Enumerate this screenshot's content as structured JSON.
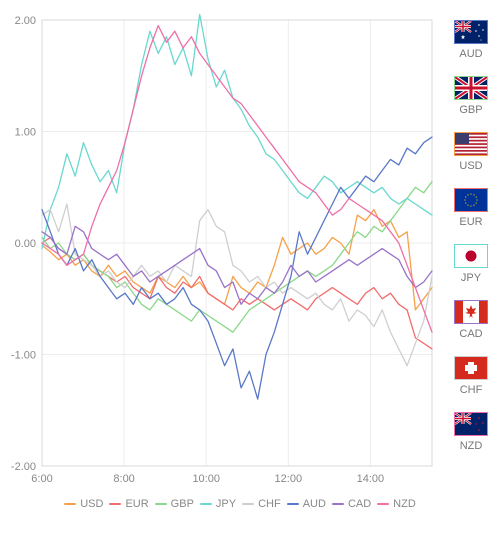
{
  "chart": {
    "type": "line",
    "background_color": "#ffffff",
    "grid_color": "#ececec",
    "axis_color": "#d9d9d9",
    "label_color": "#888888",
    "label_fontsize": 11,
    "xlim": [
      6,
      15.5
    ],
    "ylim": [
      -2,
      2
    ],
    "yticks": [
      -2.0,
      -1.0,
      0.0,
      1.0,
      2.0
    ],
    "ytick_labels": [
      "-2.00",
      "-1.00",
      "0.00",
      "1.00",
      "2.00"
    ],
    "xticks": [
      6,
      8,
      10,
      12,
      14
    ],
    "xtick_labels": [
      "6:00",
      "8:00",
      "10:00",
      "12:00",
      "14:00"
    ],
    "line_width": 1.3,
    "series": [
      {
        "label": "USD",
        "color": "#f5a14a",
        "data": [
          -0.02,
          -0.08,
          -0.15,
          -0.1,
          -0.2,
          -0.15,
          -0.25,
          -0.3,
          -0.2,
          -0.3,
          -0.25,
          -0.35,
          -0.4,
          -0.45,
          -0.3,
          -0.35,
          -0.4,
          -0.3,
          -0.4,
          -0.35,
          -0.45,
          -0.5,
          -0.55,
          -0.3,
          -0.4,
          -0.45,
          -0.35,
          -0.4,
          -0.2,
          0.05,
          -0.1,
          -0.05,
          0.0,
          -0.1,
          -0.05,
          0.05,
          0.0,
          -0.1,
          0.25,
          0.2,
          0.3,
          0.15,
          0.2,
          0.05,
          0.1,
          -0.6,
          -0.5,
          -0.4
        ]
      },
      {
        "label": "EUR",
        "color": "#f26d6d",
        "data": [
          0.0,
          0.05,
          -0.05,
          -0.1,
          -0.15,
          -0.1,
          -0.2,
          -0.25,
          -0.3,
          -0.35,
          -0.3,
          -0.4,
          -0.45,
          -0.5,
          -0.3,
          -0.4,
          -0.45,
          -0.35,
          -0.4,
          -0.3,
          -0.45,
          -0.5,
          -0.55,
          -0.6,
          -0.5,
          -0.55,
          -0.5,
          -0.55,
          -0.6,
          -0.55,
          -0.5,
          -0.55,
          -0.6,
          -0.5,
          -0.45,
          -0.4,
          -0.45,
          -0.5,
          -0.55,
          -0.45,
          -0.4,
          -0.5,
          -0.45,
          -0.55,
          -0.6,
          -0.85,
          -0.9,
          -0.95
        ]
      },
      {
        "label": "GBP",
        "color": "#8ad88a",
        "data": [
          0.05,
          -0.05,
          0.0,
          -0.1,
          -0.15,
          -0.1,
          -0.2,
          -0.25,
          -0.3,
          -0.4,
          -0.35,
          -0.45,
          -0.55,
          -0.6,
          -0.5,
          -0.55,
          -0.6,
          -0.65,
          -0.7,
          -0.6,
          -0.65,
          -0.7,
          -0.75,
          -0.8,
          -0.7,
          -0.6,
          -0.55,
          -0.5,
          -0.45,
          -0.4,
          -0.35,
          -0.3,
          -0.25,
          -0.3,
          -0.25,
          -0.2,
          -0.1,
          0.0,
          0.1,
          0.05,
          0.15,
          0.1,
          0.2,
          0.3,
          0.4,
          0.5,
          0.45,
          0.55
        ]
      },
      {
        "label": "JPY",
        "color": "#69d8cf",
        "data": [
          -0.05,
          0.3,
          0.5,
          0.8,
          0.6,
          0.9,
          0.7,
          0.55,
          0.65,
          0.45,
          0.9,
          1.2,
          1.6,
          1.9,
          1.7,
          1.85,
          1.6,
          1.75,
          1.5,
          2.05,
          1.65,
          1.4,
          1.55,
          1.3,
          1.2,
          1.05,
          0.95,
          0.8,
          0.75,
          0.65,
          0.55,
          0.45,
          0.4,
          0.5,
          0.6,
          0.55,
          0.45,
          0.5,
          0.55,
          0.5,
          0.45,
          0.5,
          0.4,
          0.35,
          0.4,
          0.35,
          0.3,
          0.25
        ]
      },
      {
        "label": "CHF",
        "color": "#cfcfcf",
        "data": [
          0.25,
          0.3,
          0.1,
          0.35,
          -0.1,
          -0.15,
          -0.2,
          -0.3,
          -0.25,
          -0.35,
          -0.4,
          -0.3,
          -0.2,
          -0.3,
          -0.25,
          -0.35,
          -0.2,
          -0.25,
          -0.3,
          0.2,
          0.3,
          0.15,
          0.1,
          -0.2,
          -0.25,
          -0.35,
          -0.3,
          -0.4,
          -0.35,
          -0.45,
          -0.4,
          -0.45,
          -0.5,
          -0.45,
          -0.55,
          -0.6,
          -0.5,
          -0.7,
          -0.6,
          -0.65,
          -0.75,
          -0.6,
          -0.8,
          -0.95,
          -1.1,
          -0.9,
          -0.7,
          -0.3
        ]
      },
      {
        "label": "AUD",
        "color": "#5a78c8",
        "data": [
          0.3,
          0.1,
          -0.1,
          -0.2,
          -0.05,
          -0.25,
          -0.15,
          -0.3,
          -0.4,
          -0.5,
          -0.45,
          -0.55,
          -0.4,
          -0.5,
          -0.45,
          -0.55,
          -0.5,
          -0.4,
          -0.55,
          -0.6,
          -0.7,
          -0.9,
          -1.1,
          -0.95,
          -1.3,
          -1.15,
          -1.4,
          -1.0,
          -0.8,
          -0.55,
          -0.3,
          0.1,
          -0.1,
          0.05,
          0.2,
          0.35,
          0.5,
          0.4,
          0.5,
          0.6,
          0.55,
          0.65,
          0.75,
          0.7,
          0.85,
          0.8,
          0.9,
          0.95
        ]
      },
      {
        "label": "CAD",
        "color": "#9a73c9",
        "data": [
          0.1,
          0.05,
          -0.05,
          -0.1,
          0.15,
          0.1,
          -0.05,
          -0.1,
          -0.15,
          -0.1,
          -0.2,
          -0.3,
          -0.25,
          -0.35,
          -0.3,
          -0.25,
          -0.2,
          -0.15,
          -0.1,
          -0.05,
          -0.2,
          -0.25,
          -0.4,
          -0.35,
          -0.55,
          -0.45,
          -0.5,
          -0.4,
          -0.45,
          -0.35,
          -0.2,
          -0.3,
          -0.25,
          -0.35,
          -0.3,
          -0.25,
          -0.2,
          -0.15,
          -0.2,
          -0.15,
          -0.1,
          -0.05,
          -0.1,
          -0.15,
          -0.3,
          -0.4,
          -0.35,
          -0.25
        ]
      },
      {
        "label": "NZD",
        "color": "#ef6fa8",
        "data": [
          0.0,
          -0.05,
          -0.1,
          -0.2,
          -0.15,
          -0.1,
          0.15,
          0.35,
          0.5,
          0.65,
          0.9,
          1.2,
          1.5,
          1.75,
          1.95,
          1.8,
          1.9,
          1.75,
          1.85,
          1.7,
          1.6,
          1.5,
          1.4,
          1.3,
          1.25,
          1.15,
          1.05,
          0.95,
          0.85,
          0.75,
          0.65,
          0.55,
          0.5,
          0.45,
          0.35,
          0.25,
          0.3,
          0.4,
          0.35,
          0.3,
          0.25,
          0.2,
          0.1,
          0.0,
          -0.2,
          -0.4,
          -0.6,
          -0.8
        ]
      }
    ]
  },
  "legend": {
    "items": [
      "USD",
      "EUR",
      "GBP",
      "JPY",
      "CHF",
      "AUD",
      "CAD",
      "NZD"
    ]
  },
  "right_panel": {
    "items": [
      {
        "code": "AUD",
        "border": "#5a78c8",
        "flag": "au"
      },
      {
        "code": "GBP",
        "border": "#8ad88a",
        "flag": "gb"
      },
      {
        "code": "USD",
        "border": "#f5a14a",
        "flag": "us"
      },
      {
        "code": "EUR",
        "border": "#f26d6d",
        "flag": "eu"
      },
      {
        "code": "JPY",
        "border": "#69d8cf",
        "flag": "jp"
      },
      {
        "code": "CAD",
        "border": "#9a73c9",
        "flag": "ca"
      },
      {
        "code": "CHF",
        "border": "#cfcfcf",
        "flag": "ch"
      },
      {
        "code": "NZD",
        "border": "#ef6fa8",
        "flag": "nz"
      }
    ]
  }
}
